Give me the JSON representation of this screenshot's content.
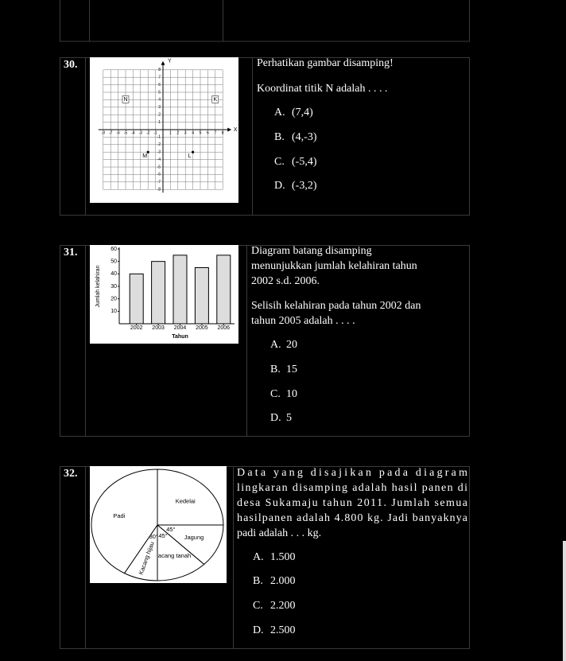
{
  "questions": [
    {
      "number": "30.",
      "prompt": [
        "Perhatikan gambar disamping!",
        "Koordinat titik N adalah . . . ."
      ],
      "figure": {
        "type": "coordinate-grid",
        "x_axis_label": "X",
        "y_axis_label": "Y",
        "xlim": [
          -8,
          8
        ],
        "ylim": [
          -8,
          8
        ],
        "xticks": [
          -8,
          -7,
          -6,
          -5,
          -4,
          -3,
          -2,
          -1,
          1,
          2,
          3,
          4,
          5,
          6,
          7,
          8
        ],
        "yticks": [
          -8,
          -7,
          -6,
          -5,
          -4,
          -3,
          -2,
          -1,
          1,
          2,
          3,
          4,
          5,
          6,
          7,
          8
        ],
        "points": [
          {
            "label": "N",
            "x": -5,
            "y": 4
          },
          {
            "label": "K",
            "x": 7,
            "y": 4
          },
          {
            "label": "M",
            "x": -2,
            "y": -3
          },
          {
            "label": "L",
            "x": 4,
            "y": -3
          }
        ]
      },
      "options": [
        {
          "letter": "A.",
          "text": "(7,4)"
        },
        {
          "letter": "B.",
          "text": "(4,-3)"
        },
        {
          "letter": "C.",
          "text": "(-5,4)"
        },
        {
          "letter": "D.",
          "text": "(-3,2)"
        }
      ]
    },
    {
      "number": "31.",
      "prompt": [
        "Diagram batang disamping",
        "menunjukkan jumlah kelahiran tahun",
        "2002 s.d. 2006.",
        "Selisih kelahiran pada tahun 2002 dan",
        "tahun 2005 adalah . . . ."
      ],
      "figure": {
        "type": "bar",
        "y_axis_label": "Jumlah kelahiran",
        "x_axis_label": "Tahun",
        "categories": [
          "2002",
          "2003",
          "2004",
          "2005",
          "2006"
        ],
        "values": [
          40,
          50,
          55,
          45,
          55
        ],
        "ylim": [
          0,
          60
        ],
        "yticks": [
          10,
          20,
          30,
          40,
          50,
          60
        ]
      },
      "options": [
        {
          "letter": "A.",
          "text": "20"
        },
        {
          "letter": "B.",
          "text": "15"
        },
        {
          "letter": "C.",
          "text": "10"
        },
        {
          "letter": "D.",
          "text": "5"
        }
      ]
    },
    {
      "number": "32.",
      "prompt": [
        "Data yang disajikan pada diagram",
        "lingkaran disamping adalah hasil panen di",
        "desa Sukamaju tahun 2011. Jumlah semua",
        "hasilpanen adalah 4.800 kg. Jadi banyaknya",
        "padi adalah . . . kg."
      ],
      "figure": {
        "type": "pie",
        "slices": [
          {
            "name": "Kedelai",
            "angle": 90
          },
          {
            "name": "Jagung",
            "angle": 45,
            "angle_label": "45°"
          },
          {
            "name": "Kacang tanah",
            "angle": 45,
            "angle_label": "45°"
          },
          {
            "name": "Kacang hijau",
            "angle": 30,
            "angle_label": "30°"
          },
          {
            "name": "Padi",
            "angle": 150
          }
        ]
      },
      "options": [
        {
          "letter": "A.",
          "text": "1.500"
        },
        {
          "letter": "B.",
          "text": "2.000"
        },
        {
          "letter": "C.",
          "text": "2.200"
        },
        {
          "letter": "D.",
          "text": "2.500"
        }
      ]
    }
  ]
}
